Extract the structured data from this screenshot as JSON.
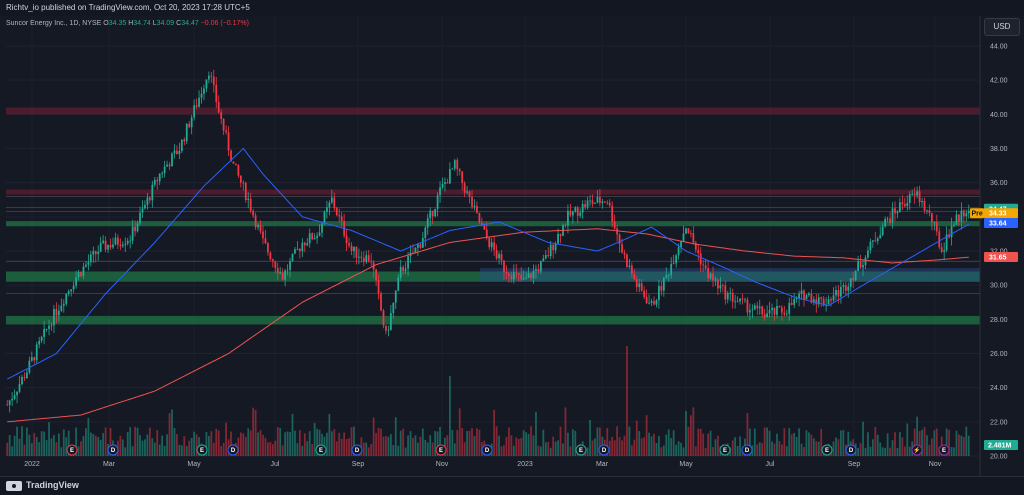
{
  "header": {
    "publisher": "Richtv_io published on TradingView.com, Oct 20, 2023 17:28 UTC+5"
  },
  "legend": {
    "symbol": "Suncor Energy Inc., 1D, NYSE",
    "open_label": "O",
    "open": "34.35",
    "high_label": "H",
    "high": "34.74",
    "low_label": "L",
    "low": "34.09",
    "close_label": "C",
    "close": "34.47",
    "change": "−0.06 (−0.17%)"
  },
  "currency": "USD",
  "footer": {
    "brand": "TradingView"
  },
  "colors": {
    "background": "#151924",
    "up": "#22ab94",
    "down": "#f23645",
    "ma_short": "#2962ff",
    "ma_long": "#ef5350",
    "zone_red": "#9c2740",
    "zone_green": "#1f8a4c",
    "zone_blue": "#2b5797"
  },
  "chart_data": {
    "type": "candlestick",
    "y_axis": {
      "min": 20,
      "max": 44,
      "ticks": [
        "44.00",
        "42.00",
        "40.00",
        "38.00",
        "36.00",
        "34.00",
        "32.00",
        "30.00",
        "28.00",
        "26.00",
        "24.00",
        "22.00",
        "20.00"
      ]
    },
    "x_axis": {
      "ticks": [
        "2022",
        "Mar",
        "May",
        "Jul",
        "Sep",
        "Nov",
        "2023",
        "Mar",
        "May",
        "Jul",
        "Sep",
        "Nov"
      ]
    },
    "price_path": [
      [
        0,
        23.0
      ],
      [
        8,
        25.0
      ],
      [
        18,
        28.0
      ],
      [
        28,
        30.5
      ],
      [
        38,
        32.2
      ],
      [
        50,
        32.8
      ],
      [
        62,
        36.5
      ],
      [
        70,
        38.0
      ],
      [
        78,
        41.0
      ],
      [
        82,
        42.6
      ],
      [
        86,
        40.2
      ],
      [
        92,
        37.0
      ],
      [
        98,
        35.0
      ],
      [
        104,
        32.5
      ],
      [
        112,
        30.5
      ],
      [
        120,
        32.5
      ],
      [
        126,
        33.0
      ],
      [
        132,
        35.0
      ],
      [
        140,
        32.0
      ],
      [
        148,
        31.5
      ],
      [
        154,
        27.0
      ],
      [
        160,
        30.8
      ],
      [
        168,
        32.5
      ],
      [
        176,
        35.5
      ],
      [
        182,
        37.0
      ],
      [
        188,
        35.0
      ],
      [
        194,
        33.0
      ],
      [
        202,
        31.0
      ],
      [
        210,
        30.2
      ],
      [
        218,
        31.3
      ],
      [
        228,
        34.0
      ],
      [
        236,
        34.8
      ],
      [
        244,
        35.0
      ],
      [
        250,
        32.0
      ],
      [
        256,
        30.0
      ],
      [
        262,
        28.8
      ],
      [
        268,
        30.5
      ],
      [
        276,
        33.5
      ],
      [
        284,
        30.8
      ],
      [
        292,
        29.5
      ],
      [
        300,
        28.8
      ],
      [
        308,
        28.3
      ],
      [
        316,
        28.5
      ],
      [
        324,
        29.5
      ],
      [
        332,
        29.0
      ],
      [
        340,
        29.8
      ],
      [
        348,
        31.5
      ],
      [
        356,
        33.5
      ],
      [
        364,
        34.8
      ],
      [
        370,
        35.3
      ],
      [
        376,
        33.8
      ],
      [
        380,
        32.0
      ],
      [
        384,
        33.5
      ],
      [
        390,
        34.47
      ]
    ],
    "sma_short_path": [
      [
        0,
        24.5
      ],
      [
        20,
        26.0
      ],
      [
        40,
        29.5
      ],
      [
        60,
        32.5
      ],
      [
        80,
        35.8
      ],
      [
        96,
        38.0
      ],
      [
        104,
        36.5
      ],
      [
        120,
        34.0
      ],
      [
        140,
        33.2
      ],
      [
        160,
        32.0
      ],
      [
        180,
        33.2
      ],
      [
        200,
        33.7
      ],
      [
        220,
        32.5
      ],
      [
        240,
        32.0
      ],
      [
        250,
        32.6
      ],
      [
        262,
        33.4
      ],
      [
        276,
        32.0
      ],
      [
        292,
        31.0
      ],
      [
        304,
        30.2
      ],
      [
        320,
        29.3
      ],
      [
        334,
        28.8
      ],
      [
        348,
        30.0
      ],
      [
        360,
        31.0
      ],
      [
        372,
        32.0
      ],
      [
        384,
        33.0
      ],
      [
        392,
        33.64
      ]
    ],
    "sma_long_path": [
      [
        0,
        22.0
      ],
      [
        30,
        22.4
      ],
      [
        60,
        23.8
      ],
      [
        90,
        26.0
      ],
      [
        120,
        29.0
      ],
      [
        150,
        31.2
      ],
      [
        180,
        32.5
      ],
      [
        210,
        33.1
      ],
      [
        240,
        33.3
      ],
      [
        260,
        33.0
      ],
      [
        280,
        32.4
      ],
      [
        300,
        32.0
      ],
      [
        320,
        31.7
      ],
      [
        340,
        31.6
      ],
      [
        360,
        31.3
      ],
      [
        380,
        31.5
      ],
      [
        392,
        31.65
      ]
    ],
    "zones": [
      {
        "low": 40.0,
        "high": 40.4,
        "kind": "red"
      },
      {
        "low": 35.3,
        "high": 35.6,
        "kind": "red"
      },
      {
        "low": 33.45,
        "high": 33.75,
        "kind": "green"
      },
      {
        "low": 30.2,
        "high": 30.8,
        "kind": "green"
      },
      {
        "low": 30.2,
        "high": 31.0,
        "kind": "blue"
      },
      {
        "low": 27.7,
        "high": 28.2,
        "kind": "green"
      }
    ],
    "levels": [
      35.2,
      34.55,
      34.3,
      31.4,
      29.5
    ],
    "price_labels": [
      {
        "value": 34.47,
        "text": "34.47",
        "bg": "#22ab94",
        "prefix": ""
      },
      {
        "value": 34.33,
        "text": "34.33",
        "bg": "#f7a600",
        "prefix": "Pre"
      },
      {
        "value": 33.64,
        "text": "33.64",
        "bg": "#2962ff",
        "prefix": ""
      },
      {
        "value": 31.65,
        "text": "31.65",
        "bg": "#ef5350",
        "prefix": ""
      }
    ],
    "volume_label": "2.481M",
    "events": [
      {
        "pos": 72,
        "label": "E",
        "color": "#f23645"
      },
      {
        "pos": 113,
        "label": "D",
        "color": "#2962ff"
      },
      {
        "pos": 202,
        "label": "E",
        "color": "#22ab94"
      },
      {
        "pos": 233,
        "label": "D",
        "color": "#2962ff"
      },
      {
        "pos": 321,
        "label": "E",
        "color": "#22ab94"
      },
      {
        "pos": 357,
        "label": "D",
        "color": "#2962ff"
      },
      {
        "pos": 441,
        "label": "E",
        "color": "#f23645"
      },
      {
        "pos": 487,
        "label": "D",
        "color": "#2962ff"
      },
      {
        "pos": 581,
        "label": "E",
        "color": "#22ab94"
      },
      {
        "pos": 604,
        "label": "D",
        "color": "#2962ff"
      },
      {
        "pos": 725,
        "label": "E",
        "color": "#22ab94"
      },
      {
        "pos": 747,
        "label": "D",
        "color": "#2962ff"
      },
      {
        "pos": 827,
        "label": "E",
        "color": "#22ab94"
      },
      {
        "pos": 851,
        "label": "D",
        "color": "#2962ff"
      },
      {
        "pos": 917,
        "label": "⚡",
        "color": "#9c27b0"
      },
      {
        "pos": 944,
        "label": "E",
        "color": "#9c27b0"
      }
    ]
  }
}
